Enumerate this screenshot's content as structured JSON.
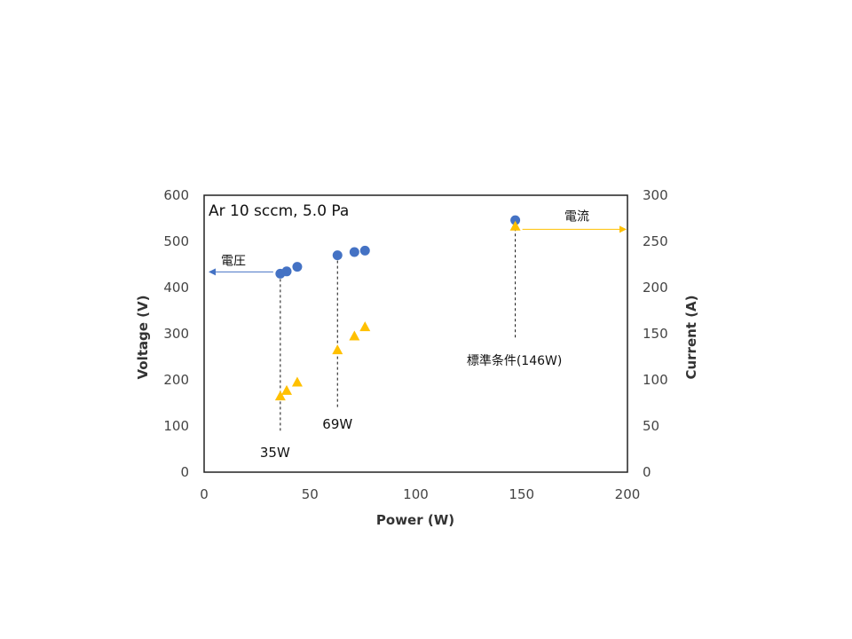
{
  "chart_data": {
    "type": "scatter",
    "title": "",
    "xlabel": "Power (W)",
    "ylabel": "Voltage (V)",
    "y2label": "Current (A)",
    "xlim": [
      0,
      200
    ],
    "ylim": [
      0,
      600
    ],
    "y2lim": [
      0,
      300
    ],
    "xticks": [
      0,
      50,
      100,
      150,
      200
    ],
    "yticks": [
      0,
      100,
      200,
      300,
      400,
      500,
      600
    ],
    "y2ticks": [
      0,
      50,
      100,
      150,
      200,
      250,
      300
    ],
    "grid": false,
    "legend": "none",
    "condition_label": "Ar 10 sccm, 5.0 Pa",
    "series": [
      {
        "axis": "left",
        "marker": "circle",
        "color": "#4472C4",
        "x": [
          36,
          39,
          44,
          63,
          71,
          76,
          147
        ],
        "y": [
          430,
          435,
          445,
          470,
          477,
          480,
          546
        ]
      },
      {
        "axis": "right",
        "marker": "triangle",
        "color": "#FFC000",
        "x": [
          36,
          39,
          44,
          63,
          71,
          76,
          147
        ],
        "y": [
          82,
          88,
          97,
          132,
          147,
          157,
          266
        ]
      }
    ],
    "annotations": {
      "voltage_arrow": {
        "label": "電圧",
        "x_from": 36,
        "x_to": 0,
        "y": 430,
        "color": "#4472C4"
      },
      "current_arrow": {
        "label": "電流",
        "x_from": 147,
        "x_to": 200,
        "y2": 266,
        "color": "#FFC000"
      },
      "markers": [
        {
          "label": "35W",
          "x": 36,
          "y_top": 430,
          "y_bottom": 90
        },
        {
          "label": "69W",
          "x": 63,
          "y_top": 470,
          "y_bottom": 140
        },
        {
          "label": "標準条件(146W)",
          "x": 147,
          "y_top": 540,
          "y_bottom": 290
        }
      ]
    }
  }
}
